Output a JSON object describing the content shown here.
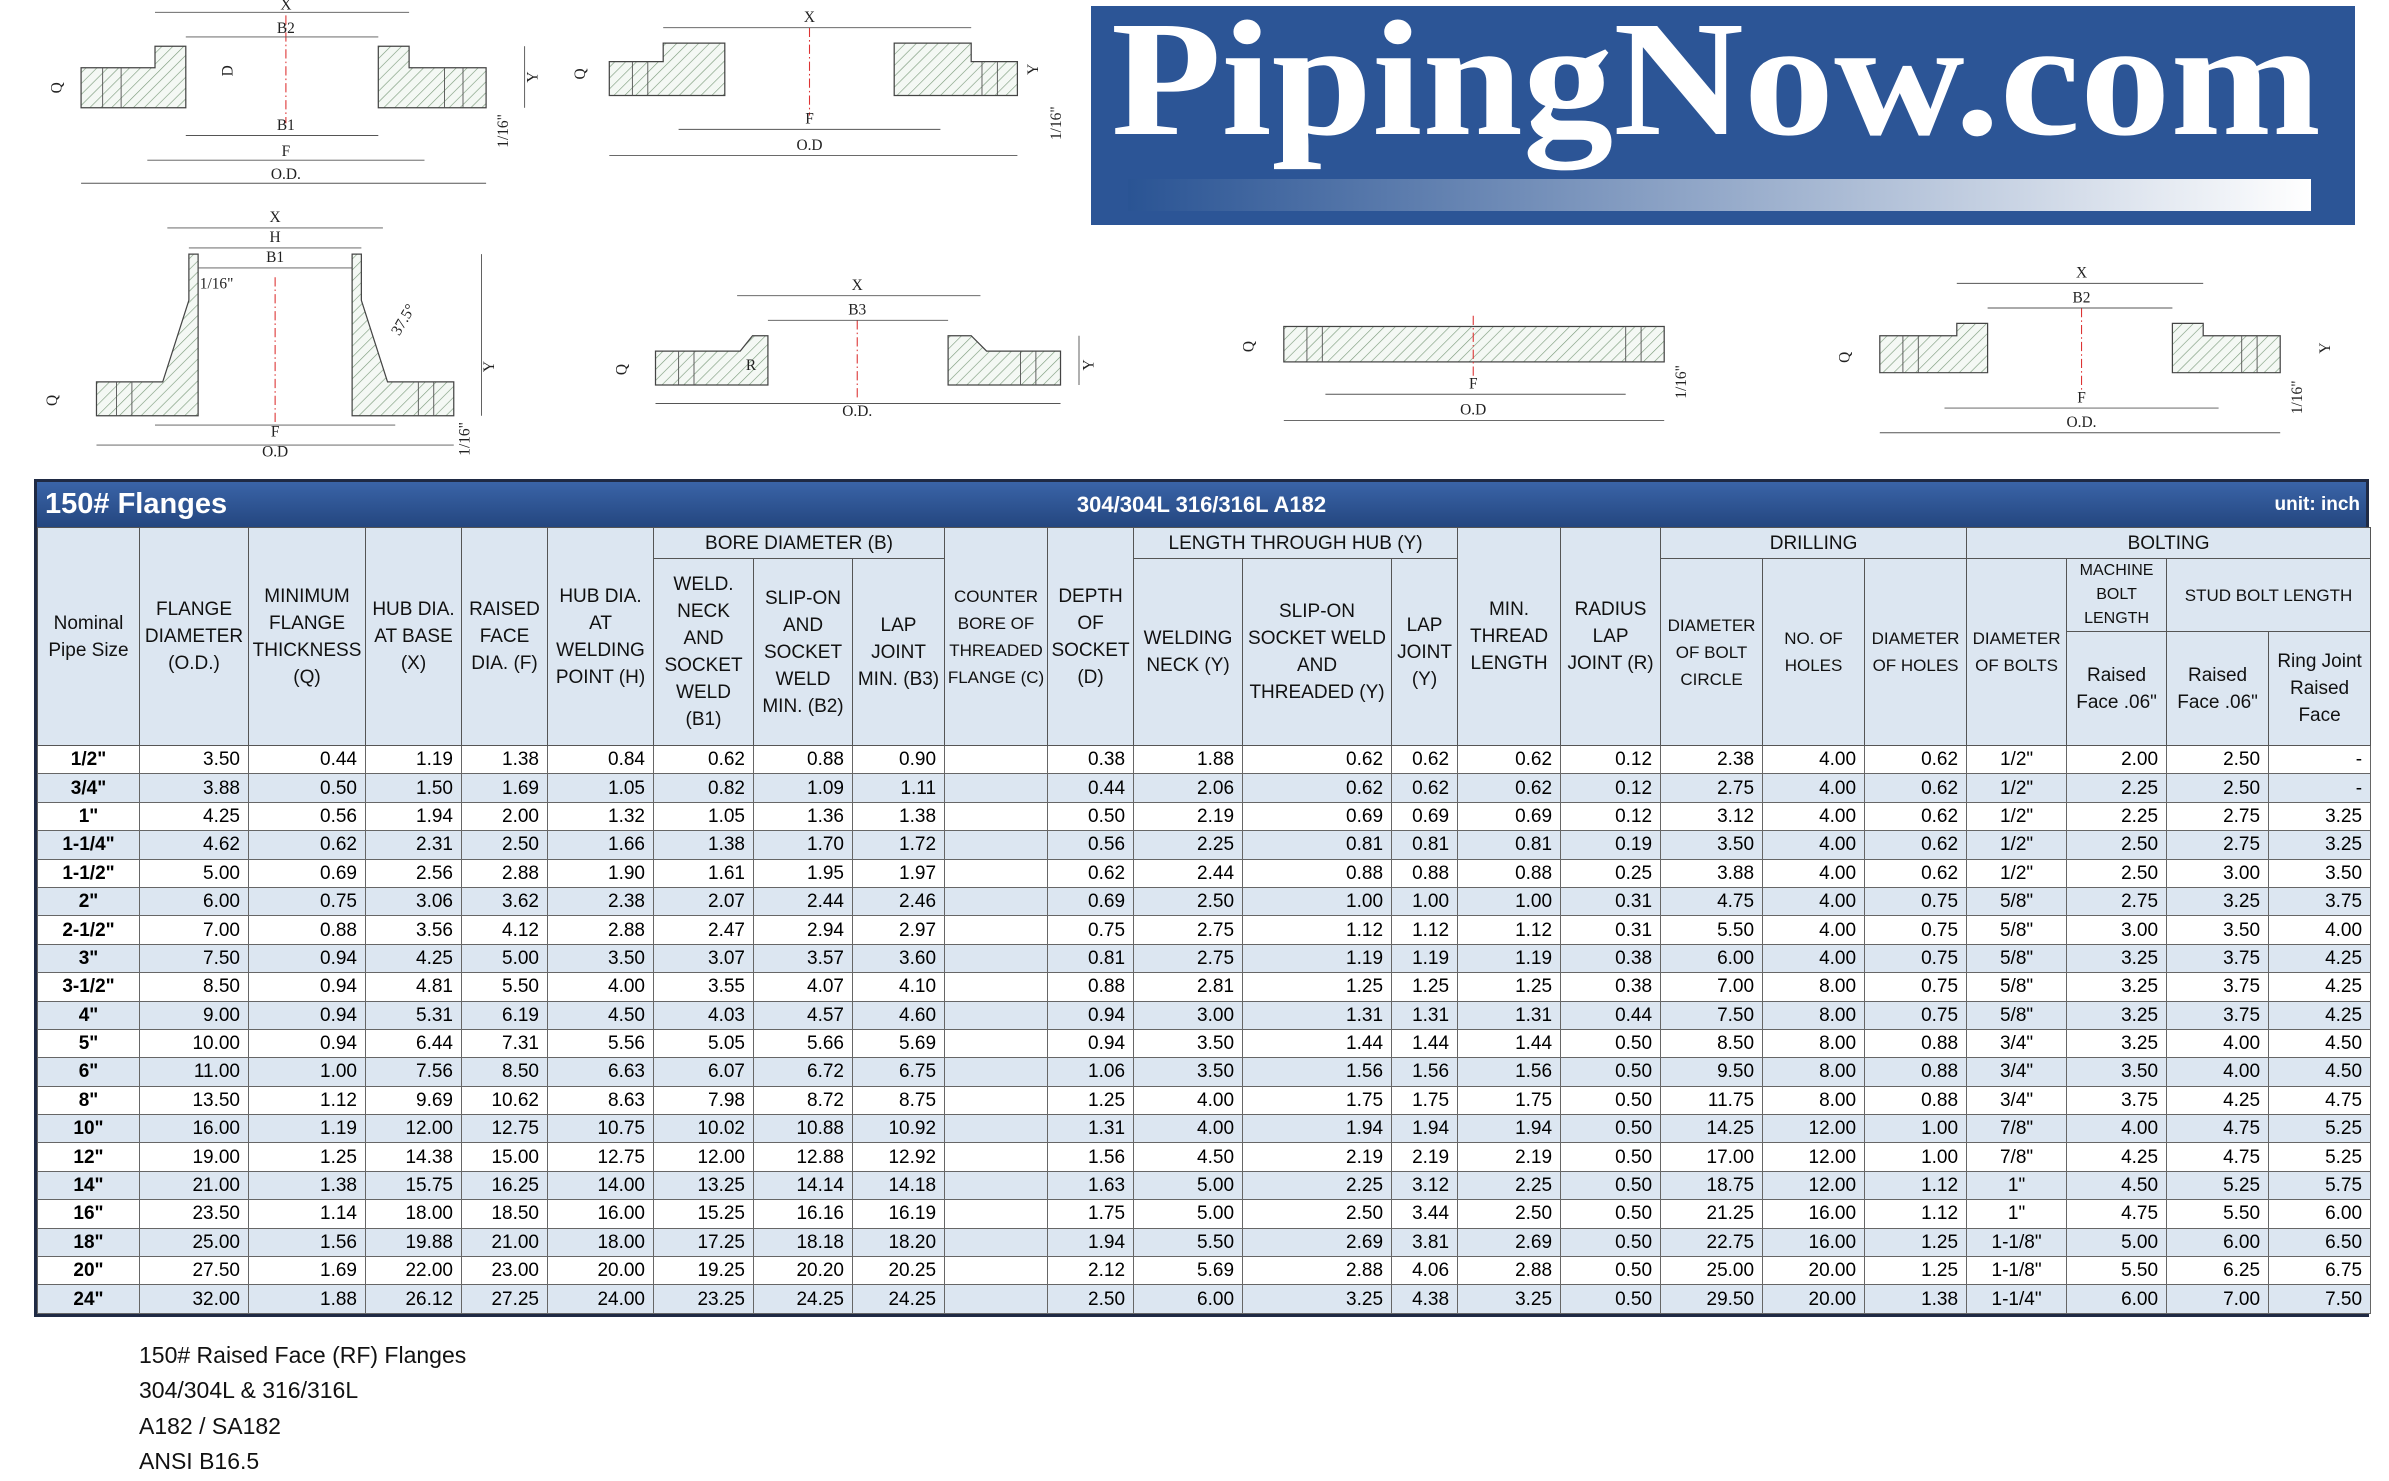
{
  "logo": "PipingNow.com",
  "diagrams": [
    {
      "labels": [
        "X",
        "B2",
        "D",
        "Q",
        "Y",
        "B1",
        "F",
        "O.D.",
        "1/16\""
      ]
    },
    {
      "labels": [
        "X",
        "Q",
        "Y",
        "F",
        "O.D",
        "1/16\""
      ]
    },
    {
      "labels": [
        "X",
        "H",
        "B1",
        "1/16\"",
        "37.5°",
        "Y",
        "Q",
        "F",
        "O.D",
        "1/16\""
      ]
    },
    {
      "labels": [
        "X",
        "B3",
        "Q",
        "R",
        "Y",
        "O.D."
      ]
    },
    {
      "labels": [
        "Q",
        "F",
        "O.D",
        "1/16\""
      ]
    },
    {
      "labels": [
        "X",
        "B2",
        "Q",
        "Y",
        "F",
        "O.D.",
        "1/16\""
      ]
    }
  ],
  "table": {
    "title": "150# Flanges",
    "materials": "304/304L  316/316L  A182",
    "unit": "unit: inch",
    "groups": [
      "BORE DIAMETER (B)",
      "LENGTH THROUGH HUB (Y)",
      "DRILLING",
      "BOLTING",
      "STUD BOLT LENGTH"
    ],
    "columns": [
      "Nominal Pipe Size",
      "FLANGE DIAMETER (O.D.)",
      "MINIMUM FLANGE THICKNESS (Q)",
      "HUB DIA. AT BASE (X)",
      "RAISED FACE DIA. (F)",
      "HUB DIA. AT WELDING POINT (H)",
      "WELD. NECK AND SOCKET WELD (B1)",
      "SLIP-ON AND SOCKET WELD MIN. (B2)",
      "LAP JOINT MIN. (B3)",
      "COUNTER BORE OF THREADED FLANGE (C)",
      "DEPTH OF SOCKET (D)",
      "WELDING NECK (Y)",
      "SLIP-ON SOCKET WELD AND THREADED (Y)",
      "LAP JOINT (Y)",
      "MIN. THREAD LENGTH",
      "RADIUS LAP JOINT (R)",
      "DIAMETER OF BOLT CIRCLE",
      "NO. OF HOLES",
      "DIAMETER OF HOLES",
      "DIAMETER OF BOLTS",
      "Raised Face .06\"",
      "Raised Face .06\"",
      "Ring Joint Raised Face"
    ],
    "machine_bolt": "MACHINE BOLT LENGTH",
    "rows": [
      [
        "1/2\"",
        "3.50",
        "0.44",
        "1.19",
        "1.38",
        "0.84",
        "0.62",
        "0.88",
        "0.90",
        null,
        "0.38",
        "1.88",
        "0.62",
        "0.62",
        "0.62",
        "0.12",
        "2.38",
        "4.00",
        "0.62",
        "1/2\"",
        "2.00",
        "2.50",
        "-"
      ],
      [
        "3/4\"",
        "3.88",
        "0.50",
        "1.50",
        "1.69",
        "1.05",
        "0.82",
        "1.09",
        "1.11",
        null,
        "0.44",
        "2.06",
        "0.62",
        "0.62",
        "0.62",
        "0.12",
        "2.75",
        "4.00",
        "0.62",
        "1/2\"",
        "2.25",
        "2.50",
        "-"
      ],
      [
        "1\"",
        "4.25",
        "0.56",
        "1.94",
        "2.00",
        "1.32",
        "1.05",
        "1.36",
        "1.38",
        null,
        "0.50",
        "2.19",
        "0.69",
        "0.69",
        "0.69",
        "0.12",
        "3.12",
        "4.00",
        "0.62",
        "1/2\"",
        "2.25",
        "2.75",
        "3.25"
      ],
      [
        "1-1/4\"",
        "4.62",
        "0.62",
        "2.31",
        "2.50",
        "1.66",
        "1.38",
        "1.70",
        "1.72",
        null,
        "0.56",
        "2.25",
        "0.81",
        "0.81",
        "0.81",
        "0.19",
        "3.50",
        "4.00",
        "0.62",
        "1/2\"",
        "2.50",
        "2.75",
        "3.25"
      ],
      [
        "1-1/2\"",
        "5.00",
        "0.69",
        "2.56",
        "2.88",
        "1.90",
        "1.61",
        "1.95",
        "1.97",
        null,
        "0.62",
        "2.44",
        "0.88",
        "0.88",
        "0.88",
        "0.25",
        "3.88",
        "4.00",
        "0.62",
        "1/2\"",
        "2.50",
        "3.00",
        "3.50"
      ],
      [
        "2\"",
        "6.00",
        "0.75",
        "3.06",
        "3.62",
        "2.38",
        "2.07",
        "2.44",
        "2.46",
        null,
        "0.69",
        "2.50",
        "1.00",
        "1.00",
        "1.00",
        "0.31",
        "4.75",
        "4.00",
        "0.75",
        "5/8\"",
        "2.75",
        "3.25",
        "3.75"
      ],
      [
        "2-1/2\"",
        "7.00",
        "0.88",
        "3.56",
        "4.12",
        "2.88",
        "2.47",
        "2.94",
        "2.97",
        null,
        "0.75",
        "2.75",
        "1.12",
        "1.12",
        "1.12",
        "0.31",
        "5.50",
        "4.00",
        "0.75",
        "5/8\"",
        "3.00",
        "3.50",
        "4.00"
      ],
      [
        "3\"",
        "7.50",
        "0.94",
        "4.25",
        "5.00",
        "3.50",
        "3.07",
        "3.57",
        "3.60",
        null,
        "0.81",
        "2.75",
        "1.19",
        "1.19",
        "1.19",
        "0.38",
        "6.00",
        "4.00",
        "0.75",
        "5/8\"",
        "3.25",
        "3.75",
        "4.25"
      ],
      [
        "3-1/2\"",
        "8.50",
        "0.94",
        "4.81",
        "5.50",
        "4.00",
        "3.55",
        "4.07",
        "4.10",
        null,
        "0.88",
        "2.81",
        "1.25",
        "1.25",
        "1.25",
        "0.38",
        "7.00",
        "8.00",
        "0.75",
        "5/8\"",
        "3.25",
        "3.75",
        "4.25"
      ],
      [
        "4\"",
        "9.00",
        "0.94",
        "5.31",
        "6.19",
        "4.50",
        "4.03",
        "4.57",
        "4.60",
        null,
        "0.94",
        "3.00",
        "1.31",
        "1.31",
        "1.31",
        "0.44",
        "7.50",
        "8.00",
        "0.75",
        "5/8\"",
        "3.25",
        "3.75",
        "4.25"
      ],
      [
        "5\"",
        "10.00",
        "0.94",
        "6.44",
        "7.31",
        "5.56",
        "5.05",
        "5.66",
        "5.69",
        null,
        "0.94",
        "3.50",
        "1.44",
        "1.44",
        "1.44",
        "0.50",
        "8.50",
        "8.00",
        "0.88",
        "3/4\"",
        "3.25",
        "4.00",
        "4.50"
      ],
      [
        "6\"",
        "11.00",
        "1.00",
        "7.56",
        "8.50",
        "6.63",
        "6.07",
        "6.72",
        "6.75",
        null,
        "1.06",
        "3.50",
        "1.56",
        "1.56",
        "1.56",
        "0.50",
        "9.50",
        "8.00",
        "0.88",
        "3/4\"",
        "3.50",
        "4.00",
        "4.50"
      ],
      [
        "8\"",
        "13.50",
        "1.12",
        "9.69",
        "10.62",
        "8.63",
        "7.98",
        "8.72",
        "8.75",
        null,
        "1.25",
        "4.00",
        "1.75",
        "1.75",
        "1.75",
        "0.50",
        "11.75",
        "8.00",
        "0.88",
        "3/4\"",
        "3.75",
        "4.25",
        "4.75"
      ],
      [
        "10\"",
        "16.00",
        "1.19",
        "12.00",
        "12.75",
        "10.75",
        "10.02",
        "10.88",
        "10.92",
        null,
        "1.31",
        "4.00",
        "1.94",
        "1.94",
        "1.94",
        "0.50",
        "14.25",
        "12.00",
        "1.00",
        "7/8\"",
        "4.00",
        "4.75",
        "5.25"
      ],
      [
        "12\"",
        "19.00",
        "1.25",
        "14.38",
        "15.00",
        "12.75",
        "12.00",
        "12.88",
        "12.92",
        null,
        "1.56",
        "4.50",
        "2.19",
        "2.19",
        "2.19",
        "0.50",
        "17.00",
        "12.00",
        "1.00",
        "7/8\"",
        "4.25",
        "4.75",
        "5.25"
      ],
      [
        "14\"",
        "21.00",
        "1.38",
        "15.75",
        "16.25",
        "14.00",
        "13.25",
        "14.14",
        "14.18",
        null,
        "1.63",
        "5.00",
        "2.25",
        "3.12",
        "2.25",
        "0.50",
        "18.75",
        "12.00",
        "1.12",
        "1\"",
        "4.50",
        "5.25",
        "5.75"
      ],
      [
        "16\"",
        "23.50",
        "1.14",
        "18.00",
        "18.50",
        "16.00",
        "15.25",
        "16.16",
        "16.19",
        null,
        "1.75",
        "5.00",
        "2.50",
        "3.44",
        "2.50",
        "0.50",
        "21.25",
        "16.00",
        "1.12",
        "1\"",
        "4.75",
        "5.50",
        "6.00"
      ],
      [
        "18\"",
        "25.00",
        "1.56",
        "19.88",
        "21.00",
        "18.00",
        "17.25",
        "18.18",
        "18.20",
        null,
        "1.94",
        "5.50",
        "2.69",
        "3.81",
        "2.69",
        "0.50",
        "22.75",
        "16.00",
        "1.25",
        "1-1/8\"",
        "5.00",
        "6.00",
        "6.50"
      ],
      [
        "20\"",
        "27.50",
        "1.69",
        "22.00",
        "23.00",
        "20.00",
        "19.25",
        "20.20",
        "20.25",
        null,
        "2.12",
        "5.69",
        "2.88",
        "4.06",
        "2.88",
        "0.50",
        "25.00",
        "20.00",
        "1.25",
        "1-1/8\"",
        "5.50",
        "6.25",
        "6.75"
      ],
      [
        "24\"",
        "32.00",
        "1.88",
        "26.12",
        "27.25",
        "24.00",
        "23.25",
        "24.25",
        "24.25",
        null,
        "2.50",
        "6.00",
        "3.25",
        "4.38",
        "3.25",
        "0.50",
        "29.50",
        "20.00",
        "1.38",
        "1-1/4\"",
        "6.00",
        "7.00",
        "7.50"
      ]
    ]
  },
  "notes": [
    "150# Raised Face (RF) Flanges",
    "304/304L & 316/316L",
    "A182 / SA182",
    "ANSI B16.5"
  ]
}
